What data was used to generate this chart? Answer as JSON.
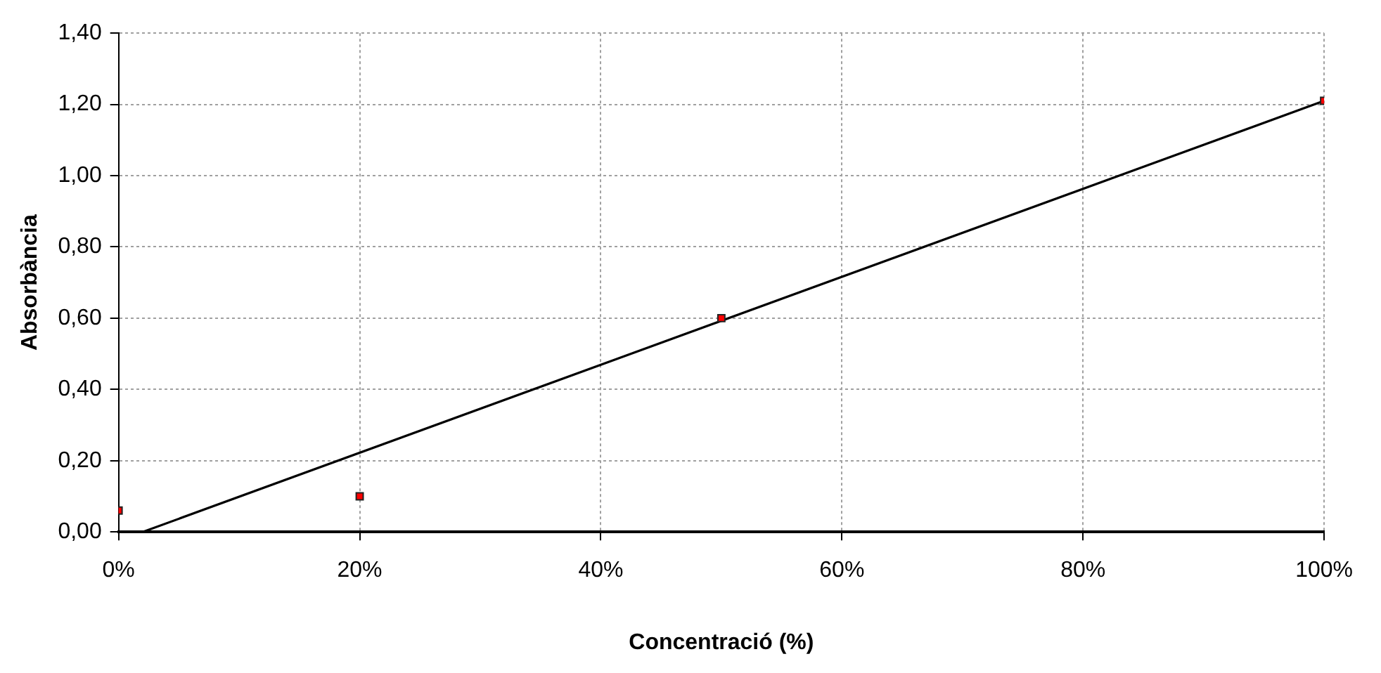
{
  "chart_data": {
    "type": "scatter",
    "xlabel": "Concentració (%)",
    "ylabel": "Absorbància",
    "xlim": [
      0,
      100
    ],
    "xticks": [
      {
        "value": 0,
        "label": "0%"
      },
      {
        "value": 20,
        "label": "20%"
      },
      {
        "value": 40,
        "label": "40%"
      },
      {
        "value": 60,
        "label": "60%"
      },
      {
        "value": 80,
        "label": "80%"
      },
      {
        "value": 100,
        "label": "100%"
      }
    ],
    "ylim": [
      0,
      1.4
    ],
    "yticks": [
      {
        "value": 0,
        "label": "0,00"
      },
      {
        "value": 0.2,
        "label": "0,20"
      },
      {
        "value": 0.4,
        "label": "0,40"
      },
      {
        "value": 0.6,
        "label": "0,60"
      },
      {
        "value": 0.8,
        "label": "0,80"
      },
      {
        "value": 1.0,
        "label": "1,00"
      },
      {
        "value": 1.2,
        "label": "1,20"
      },
      {
        "value": 1.4,
        "label": "1,40"
      }
    ],
    "grid": true,
    "marker": "square",
    "series": [
      {
        "color": "#ff0000",
        "x": [
          0,
          20,
          50,
          100
        ],
        "values": [
          0.06,
          0.1,
          0.6,
          1.21
        ]
      },
      {
        "type": "line",
        "color": "#000000",
        "x": [
          2,
          100
        ],
        "values": [
          0,
          1.21
        ],
        "marker": "none",
        "line_style": "solid"
      }
    ]
  }
}
